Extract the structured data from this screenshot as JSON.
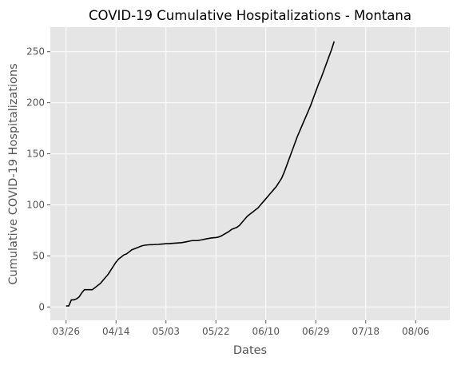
{
  "chart_data": {
    "type": "line",
    "title": "COVID-19 Cumulative Hospitalizations - Montana",
    "xlabel": "Dates",
    "ylabel": "Cumulative COVID-19 Hospitalizations",
    "xlim": [
      -6,
      146
    ],
    "ylim": [
      -13,
      274
    ],
    "grid": true,
    "x_ticks": [
      {
        "value": 0,
        "label": "03/26"
      },
      {
        "value": 19,
        "label": "04/14"
      },
      {
        "value": 38,
        "label": "05/03"
      },
      {
        "value": 57,
        "label": "05/22"
      },
      {
        "value": 76,
        "label": "06/10"
      },
      {
        "value": 95,
        "label": "06/29"
      },
      {
        "value": 114,
        "label": "07/18"
      },
      {
        "value": 133,
        "label": "08/06"
      }
    ],
    "y_ticks": [
      0,
      50,
      100,
      150,
      200,
      250
    ],
    "x_unit": "days since 03/26",
    "series": [
      {
        "name": "",
        "color": "#000000",
        "points": [
          [
            0,
            1
          ],
          [
            1,
            1
          ],
          [
            2,
            7
          ],
          [
            3,
            7
          ],
          [
            4,
            8
          ],
          [
            5,
            10
          ],
          [
            6,
            14
          ],
          [
            7,
            17
          ],
          [
            8,
            17
          ],
          [
            9,
            17
          ],
          [
            10,
            17
          ],
          [
            11,
            19
          ],
          [
            12,
            21
          ],
          [
            13,
            23
          ],
          [
            14,
            26
          ],
          [
            15,
            29
          ],
          [
            16,
            32
          ],
          [
            17,
            36
          ],
          [
            18,
            40
          ],
          [
            19,
            44
          ],
          [
            20,
            47
          ],
          [
            21,
            49
          ],
          [
            22,
            51
          ],
          [
            23,
            52
          ],
          [
            24,
            54
          ],
          [
            25,
            56
          ],
          [
            26,
            57
          ],
          [
            27,
            58
          ],
          [
            28,
            59
          ],
          [
            29,
            60
          ],
          [
            30,
            60.5
          ],
          [
            31,
            60.8
          ],
          [
            32,
            61
          ],
          [
            33,
            61
          ],
          [
            34,
            61.2
          ],
          [
            35,
            61.3
          ],
          [
            36,
            61.5
          ],
          [
            37,
            61.7
          ],
          [
            38,
            62
          ],
          [
            39,
            62
          ],
          [
            40,
            62.2
          ],
          [
            41,
            62.4
          ],
          [
            42,
            62.6
          ],
          [
            43,
            62.8
          ],
          [
            44,
            63
          ],
          [
            45,
            63.5
          ],
          [
            46,
            64
          ],
          [
            47,
            64.5
          ],
          [
            48,
            65
          ],
          [
            49,
            65
          ],
          [
            50,
            65
          ],
          [
            51,
            65.5
          ],
          [
            52,
            66
          ],
          [
            53,
            66.5
          ],
          [
            54,
            67
          ],
          [
            55,
            67.5
          ],
          [
            56,
            67.8
          ],
          [
            57,
            68
          ],
          [
            58,
            68.5
          ],
          [
            59,
            69.5
          ],
          [
            60,
            71
          ],
          [
            61,
            72.5
          ],
          [
            62,
            74
          ],
          [
            63,
            76
          ],
          [
            64,
            77
          ],
          [
            65,
            78
          ],
          [
            66,
            80
          ],
          [
            67,
            83
          ],
          [
            68,
            86
          ],
          [
            69,
            89
          ],
          [
            70,
            91
          ],
          [
            71,
            93
          ],
          [
            72,
            95
          ],
          [
            73,
            97
          ],
          [
            74,
            100
          ],
          [
            75,
            103
          ],
          [
            76,
            106
          ],
          [
            77,
            109
          ],
          [
            78,
            112
          ],
          [
            79,
            115
          ],
          [
            80,
            118
          ],
          [
            81,
            122
          ],
          [
            82,
            126
          ],
          [
            83,
            132
          ],
          [
            84,
            139
          ],
          [
            85,
            146
          ],
          [
            86,
            153
          ],
          [
            87,
            160
          ],
          [
            88,
            167
          ],
          [
            89,
            173
          ],
          [
            90,
            179
          ],
          [
            91,
            185
          ],
          [
            92,
            191
          ],
          [
            93,
            197
          ],
          [
            94,
            204
          ],
          [
            95,
            211
          ],
          [
            96,
            218
          ],
          [
            97,
            224
          ],
          [
            98,
            231
          ],
          [
            99,
            238
          ],
          [
            100,
            245
          ],
          [
            101,
            252
          ],
          [
            102,
            260
          ]
        ]
      }
    ]
  }
}
